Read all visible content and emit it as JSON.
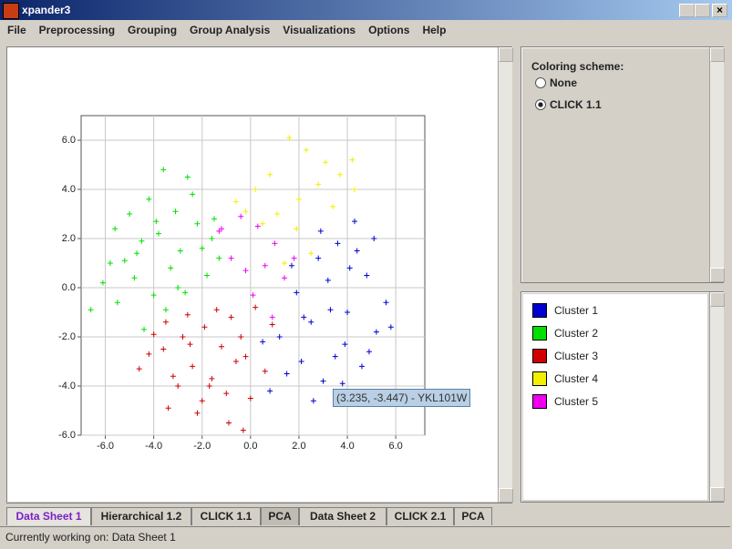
{
  "window": {
    "title": "xpander3"
  },
  "menu": [
    "File",
    "Preprocessing",
    "Grouping",
    "Group Analysis",
    "Visualizations",
    "Options",
    "Help"
  ],
  "coloring": {
    "label": "Coloring scheme:",
    "options": [
      "None",
      "CLICK 1.1"
    ]
  },
  "tooltip": "(3.235, -3.447) - YKL101W",
  "tabs": [
    "Data Sheet 1",
    "Hierarchical 1.2",
    "CLICK 1.1",
    "PCA",
    "Data Sheet 2",
    "CLICK 2.1",
    "PCA"
  ],
  "status": "Currently working on: Data Sheet 1",
  "chart_data": {
    "type": "scatter",
    "grid": true,
    "xlim": [
      -7,
      7.2
    ],
    "ylim": [
      -6,
      7
    ],
    "xticks": [
      {
        "value": -6,
        "label": "-6.0"
      },
      {
        "value": -4,
        "label": "-4.0"
      },
      {
        "value": -2,
        "label": "-2.0"
      },
      {
        "value": 0,
        "label": "0.0"
      },
      {
        "value": 2,
        "label": "2.0"
      },
      {
        "value": 4,
        "label": "4.0"
      },
      {
        "value": 6,
        "label": "6.0"
      }
    ],
    "yticks": [
      {
        "value": -6,
        "label": "-6.0"
      },
      {
        "value": -4,
        "label": "-4.0"
      },
      {
        "value": -2,
        "label": "-2.0"
      },
      {
        "value": 0,
        "label": "0.0"
      },
      {
        "value": 2,
        "label": "2.0"
      },
      {
        "value": 4,
        "label": "4.0"
      },
      {
        "value": 6,
        "label": "6.0"
      }
    ],
    "series": [
      {
        "name": "Cluster 1",
        "color": "#0000d0",
        "x": [
          4.3,
          5.1,
          3.6,
          2.8,
          4.8,
          5.6,
          3.2,
          1.9,
          4.0,
          2.5,
          1.2,
          3.9,
          5.2,
          4.6,
          2.1,
          3.0,
          1.5,
          0.8,
          2.6,
          3.5,
          4.4,
          5.8,
          1.7,
          3.3,
          4.9,
          2.2,
          0.5,
          3.8,
          4.1,
          2.9
        ],
        "values": [
          2.7,
          2.0,
          1.8,
          1.2,
          0.5,
          -0.6,
          0.3,
          -0.2,
          -1.0,
          -1.4,
          -2.0,
          -2.3,
          -1.8,
          -3.2,
          -3.0,
          -3.8,
          -3.5,
          -4.2,
          -4.6,
          -2.8,
          1.5,
          -1.6,
          0.9,
          -0.9,
          -2.6,
          -1.2,
          -2.2,
          -3.9,
          0.8,
          2.3
        ]
      },
      {
        "name": "Cluster 2",
        "color": "#00e000",
        "x": [
          -3.6,
          -2.6,
          -4.2,
          -5.0,
          -5.6,
          -3.1,
          -2.2,
          -1.5,
          -4.5,
          -3.8,
          -2.9,
          -5.2,
          -6.1,
          -4.8,
          -3.3,
          -2.0,
          -1.8,
          -4.0,
          -3.5,
          -5.5,
          -2.7,
          -4.4,
          -1.3,
          -6.6,
          -3.0,
          -4.7,
          -2.4,
          -3.9,
          -5.8,
          -1.6
        ],
        "values": [
          4.8,
          4.5,
          3.6,
          3.0,
          2.4,
          3.1,
          2.6,
          2.8,
          1.9,
          2.2,
          1.5,
          1.1,
          0.2,
          0.4,
          0.8,
          1.6,
          0.5,
          -0.3,
          -0.9,
          -0.6,
          -0.2,
          -1.7,
          1.2,
          -0.9,
          0.0,
          1.4,
          3.8,
          2.7,
          1.0,
          2.0
        ]
      },
      {
        "name": "Cluster 3",
        "color": "#d00000",
        "x": [
          -4.6,
          -3.6,
          -2.8,
          -1.9,
          -0.8,
          0.2,
          -3.2,
          -2.4,
          -1.2,
          -0.4,
          0.9,
          -4.0,
          -3.0,
          -1.6,
          -0.6,
          -2.0,
          -1.0,
          0.0,
          -3.5,
          -2.6,
          -1.4,
          -0.2,
          0.6,
          -4.2,
          -2.2,
          -0.9,
          -1.7,
          -3.4,
          -2.5,
          -0.3
        ],
        "values": [
          -3.3,
          -2.5,
          -2.0,
          -1.6,
          -1.2,
          -0.8,
          -3.6,
          -3.2,
          -2.4,
          -2.0,
          -1.5,
          -1.9,
          -4.0,
          -3.7,
          -3.0,
          -4.6,
          -4.3,
          -4.5,
          -1.4,
          -1.1,
          -0.9,
          -2.8,
          -3.4,
          -2.7,
          -5.1,
          -5.5,
          -4.0,
          -4.9,
          -2.3,
          -5.8
        ]
      },
      {
        "name": "Cluster 4",
        "color": "#f0f000",
        "x": [
          1.6,
          2.3,
          3.1,
          3.7,
          4.2,
          0.8,
          0.2,
          -0.6,
          1.1,
          2.0,
          2.8,
          0.5,
          1.9,
          3.4,
          -0.2,
          2.5,
          4.3,
          1.4
        ],
        "values": [
          6.1,
          5.6,
          5.1,
          4.6,
          5.2,
          4.6,
          4.0,
          3.5,
          3.0,
          3.6,
          4.2,
          2.6,
          2.4,
          3.3,
          3.1,
          1.4,
          4.0,
          1.0
        ]
      },
      {
        "name": "Cluster 5",
        "color": "#f000f0",
        "x": [
          -1.2,
          -0.4,
          0.3,
          1.0,
          -0.8,
          0.6,
          1.4,
          0.1,
          -1.3,
          1.8,
          0.9,
          -0.2
        ],
        "values": [
          2.4,
          2.9,
          2.5,
          1.8,
          1.2,
          0.9,
          0.4,
          -0.3,
          2.3,
          1.2,
          -1.2,
          0.7
        ]
      }
    ]
  }
}
